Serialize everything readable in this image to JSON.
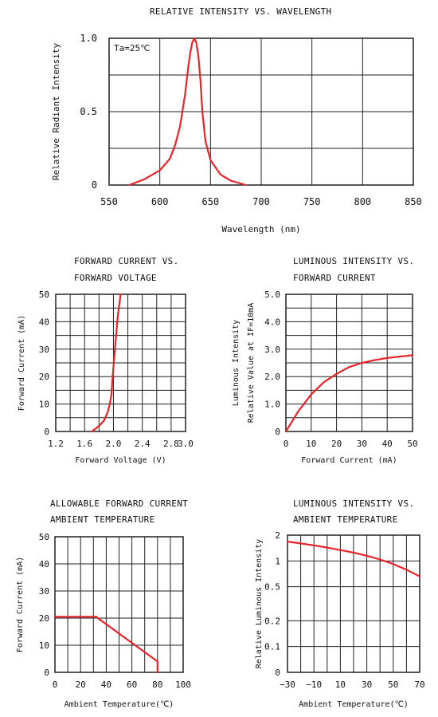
{
  "curve_color": "#e8232a",
  "charts": [
    {
      "key": "wavelength",
      "title_lines": [
        "RELATIVE INTENSITY VS. WAVELENGTH"
      ],
      "xlabel": "Wavelength (nm)",
      "ylabel": "Relative Radiant Intensity",
      "annotation": "Ta=25℃",
      "xlim": [
        550,
        850
      ],
      "ylim": [
        0,
        1.0
      ],
      "xticks": [
        550,
        600,
        650,
        700,
        750,
        800,
        850
      ],
      "xtick_labels": [
        "550",
        "600",
        "650",
        "700",
        "750",
        "800",
        "850"
      ],
      "yticks": [
        0,
        0.5,
        1.0
      ],
      "ytick_labels": [
        "0",
        "0.5",
        "1.0"
      ],
      "vgrid": [
        600,
        650,
        700,
        750,
        800
      ],
      "hgrid": [
        0.25,
        0.5,
        0.75
      ],
      "type": "line",
      "series": [
        {
          "x": [
            570,
            585,
            600,
            610,
            615,
            620,
            625,
            628,
            630,
            632,
            634,
            636,
            638,
            640,
            642,
            645,
            650,
            660,
            670,
            685
          ],
          "y": [
            0,
            0.04,
            0.1,
            0.18,
            0.27,
            0.4,
            0.62,
            0.8,
            0.9,
            0.97,
            1.0,
            0.97,
            0.88,
            0.72,
            0.5,
            0.3,
            0.17,
            0.07,
            0.03,
            0
          ]
        }
      ]
    },
    {
      "key": "fwd_voltage",
      "title_lines": [
        "FORWARD CURRENT VS.",
        "FORWARD VOLTAGE"
      ],
      "xlabel": "Forward Voltage (V)",
      "ylabel": "Forward Current (mA)",
      "annotation": "",
      "xlim": [
        1.2,
        3.0
      ],
      "ylim": [
        0,
        50
      ],
      "xticks": [
        1.2,
        1.6,
        2.0,
        2.4,
        2.8,
        3.0
      ],
      "xtick_labels": [
        "1.2",
        "1.6",
        "2.0",
        "2.4",
        "2.8",
        "3.0"
      ],
      "yticks": [
        0,
        10,
        20,
        30,
        40,
        50
      ],
      "ytick_labels": [
        "0",
        "10",
        "20",
        "30",
        "40",
        "50"
      ],
      "vgrid": [
        1.4,
        1.6,
        1.8,
        2.0,
        2.2,
        2.4,
        2.6,
        2.8
      ],
      "hgrid": [
        5,
        10,
        15,
        20,
        25,
        30,
        35,
        40,
        45
      ],
      "type": "line",
      "series": [
        {
          "x": [
            1.7,
            1.8,
            1.87,
            1.92,
            1.95,
            1.97,
            1.99,
            2.02,
            2.06,
            2.1
          ],
          "y": [
            0,
            2,
            4,
            7,
            10,
            13,
            20,
            30,
            42,
            50
          ]
        }
      ]
    },
    {
      "key": "lum_current",
      "title_lines": [
        "LUMINOUS INTENSITY VS.",
        "FORWARD CURRENT"
      ],
      "xlabel": "Forward Current (mA)",
      "ylabel": "Luminous Intensity",
      "ylabel2": "Relative Value at IF=10mA",
      "annotation": "",
      "xlim": [
        0,
        50
      ],
      "ylim": [
        0,
        5.0
      ],
      "xticks": [
        0,
        10,
        20,
        30,
        40,
        50
      ],
      "xtick_labels": [
        "0",
        "10",
        "20",
        "30",
        "40",
        "50"
      ],
      "yticks": [
        0,
        1.0,
        2.0,
        3.0,
        4.0,
        5.0
      ],
      "ytick_labels": [
        "0",
        "1.0",
        "2.0",
        "3.0",
        "4.0",
        "5.0"
      ],
      "vgrid": [
        10,
        20,
        30,
        40
      ],
      "hgrid": [
        0.5,
        1.0,
        1.5,
        2.0,
        2.5,
        3.0,
        3.5,
        4.0,
        4.5
      ],
      "type": "line",
      "series": [
        {
          "x": [
            0,
            5,
            10,
            15,
            20,
            25,
            30,
            35,
            40,
            45,
            50
          ],
          "y": [
            0,
            0.75,
            1.35,
            1.8,
            2.1,
            2.35,
            2.5,
            2.6,
            2.68,
            2.73,
            2.78
          ]
        }
      ]
    },
    {
      "key": "allow_current",
      "title_lines": [
        "ALLOWABLE FORWARD CURRENT",
        "AMBIENT TEMPERATURE"
      ],
      "xlabel": "Ambient Temperature(℃)",
      "ylabel": "Forward Current (mA)",
      "annotation": "",
      "xlim": [
        0,
        100
      ],
      "ylim": [
        0,
        50
      ],
      "xticks": [
        0,
        20,
        40,
        60,
        80,
        100
      ],
      "xtick_labels": [
        "0",
        "20",
        "40",
        "60",
        "80",
        "100"
      ],
      "yticks": [
        0,
        10,
        20,
        30,
        40,
        50
      ],
      "ytick_labels": [
        "0",
        "10",
        "20",
        "30",
        "40",
        "50"
      ],
      "vgrid": [
        10,
        20,
        30,
        40,
        50,
        60,
        70,
        80,
        90
      ],
      "hgrid": [
        10,
        20,
        30,
        40
      ],
      "type": "line",
      "series": [
        {
          "x": [
            0,
            32,
            80,
            80
          ],
          "y": [
            20.5,
            20.5,
            4,
            0
          ]
        }
      ]
    },
    {
      "key": "lum_temp",
      "title_lines": [
        "LUMINOUS INTENSITY VS.",
        "AMBIENT TEMPERATURE"
      ],
      "xlabel": "Ambient Temperature(℃)",
      "ylabel": "Relative Luminous Intensity",
      "annotation": "",
      "xlim": [
        -30,
        70
      ],
      "ylim": [
        0,
        2
      ],
      "log_y": true,
      "xticks": [
        -30,
        -10,
        10,
        30,
        50,
        70
      ],
      "xtick_labels": [
        "−30",
        "−10",
        "10",
        "30",
        "50",
        "70"
      ],
      "yticks": [
        2,
        1,
        0.5,
        0.2,
        0.1,
        0
      ],
      "ytick_labels": [
        "2",
        "1",
        "0.5",
        "0.2",
        "0.1",
        "0"
      ],
      "vgrid": [
        -20,
        -10,
        0,
        10,
        20,
        30,
        40,
        50,
        60
      ],
      "hgrid": [
        1,
        0.5,
        0.2,
        0.1
      ],
      "type": "line",
      "series": [
        {
          "x": [
            -30,
            -20,
            -10,
            0,
            10,
            20,
            30,
            40,
            50,
            60,
            70
          ],
          "y": [
            1.68,
            1.6,
            1.52,
            1.43,
            1.34,
            1.25,
            1.15,
            1.04,
            0.92,
            0.79,
            0.66
          ]
        }
      ]
    }
  ]
}
